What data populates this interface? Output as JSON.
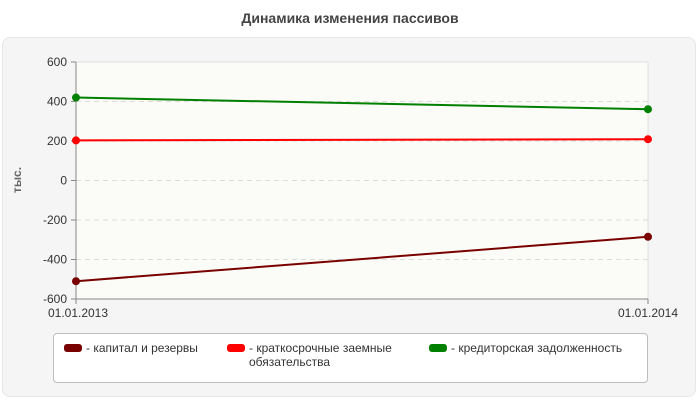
{
  "chart_data": {
    "type": "line",
    "title": "Динамика изменения пассивов",
    "xlabel": "",
    "ylabel": "тыс.",
    "x": [
      "01.01.2013",
      "01.01.2014"
    ],
    "ylim": [
      -600,
      600
    ],
    "yticks": [
      -600,
      -400,
      -200,
      0,
      200,
      400,
      600
    ],
    "grid": true,
    "legend_position": "bottom",
    "series": [
      {
        "name": "- капитал и резервы",
        "values": [
          -510,
          -285
        ],
        "color": "#7a0000"
      },
      {
        "name": "- краткосрочные заемные обязательства",
        "values": [
          203,
          209
        ],
        "color": "#ff0000"
      },
      {
        "name": "- кредиторская задолженность",
        "values": [
          420,
          361
        ],
        "color": "#008000"
      }
    ]
  }
}
